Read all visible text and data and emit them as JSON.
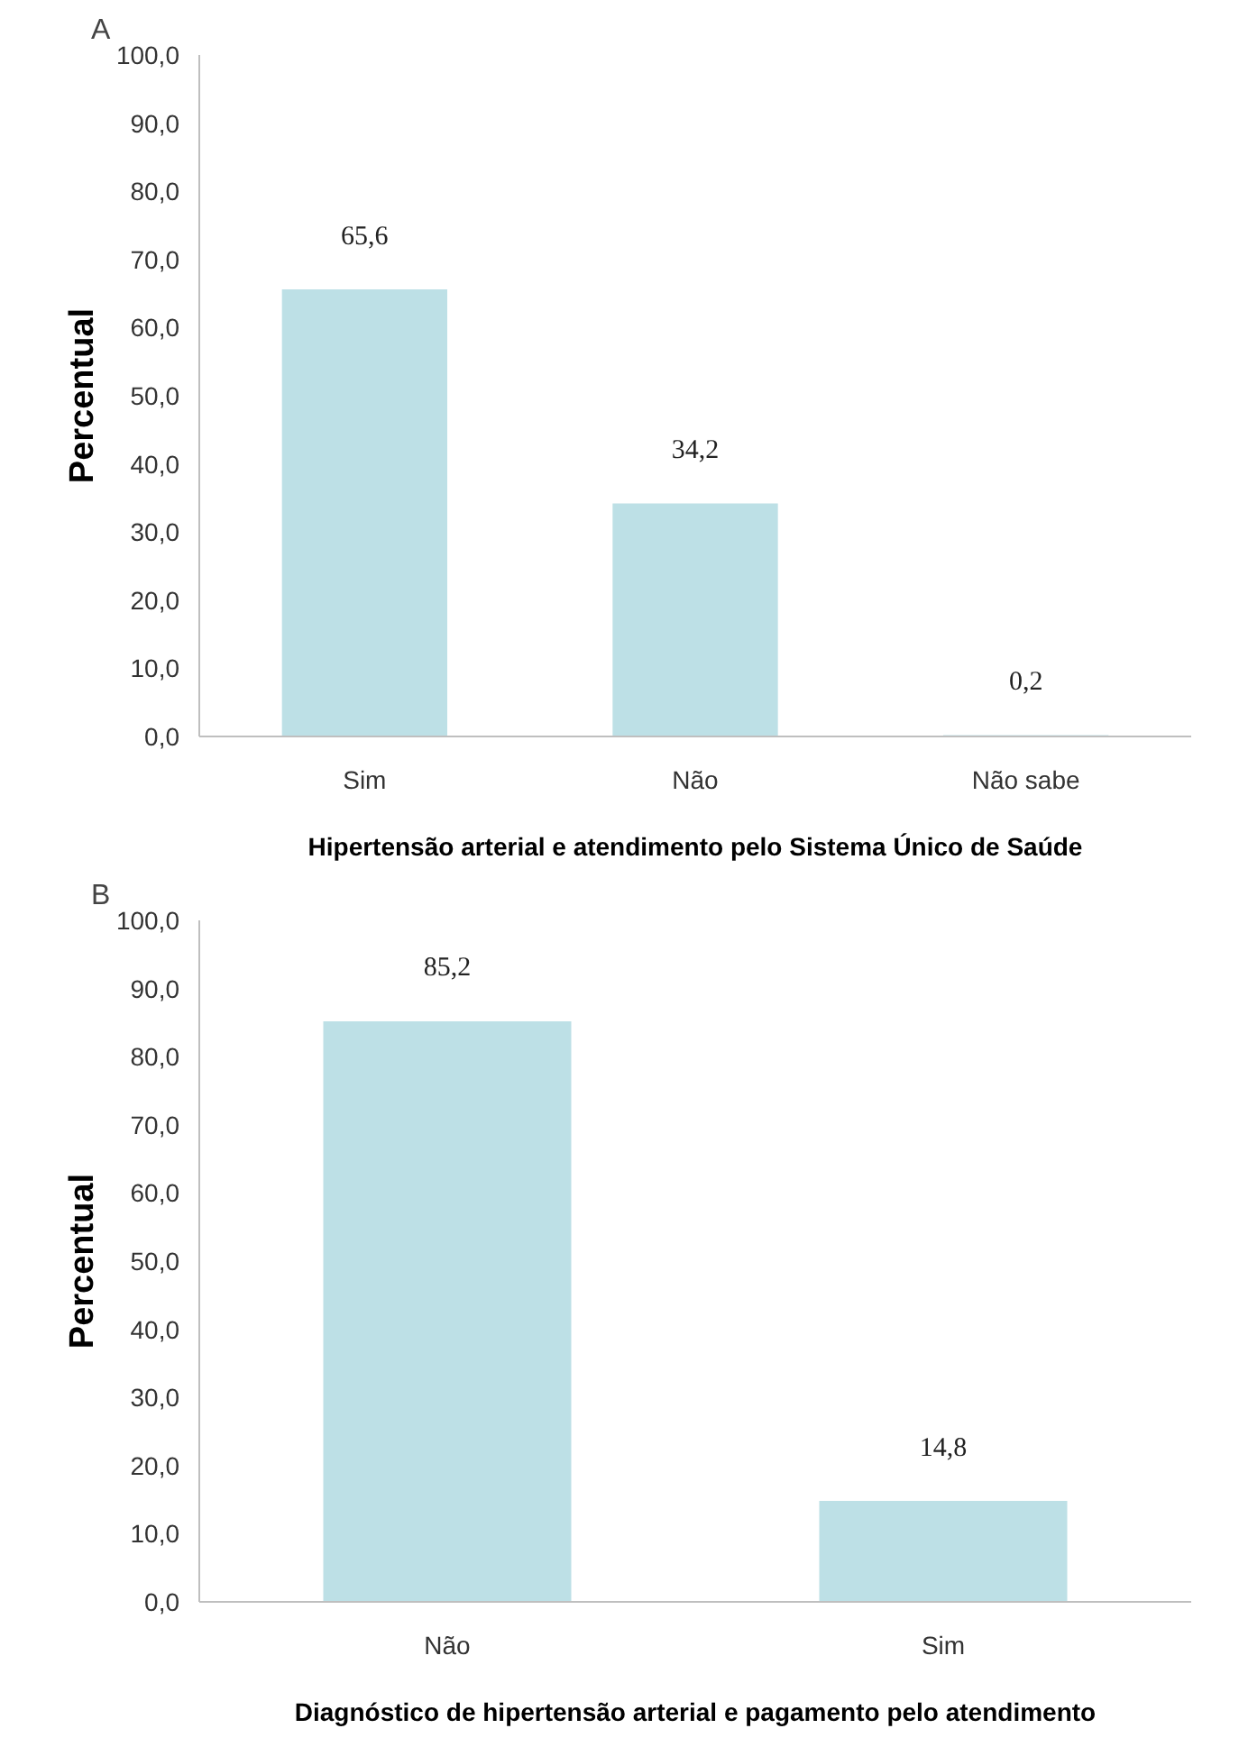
{
  "chart_data": [
    {
      "type": "bar",
      "title": "A",
      "xlabel": "Hipertensão arterial e atendimento pelo Sistema Único de Saúde",
      "ylabel": "Percentual",
      "categories": [
        "Sim",
        "Não",
        "Não sabe"
      ],
      "values": [
        65.6,
        34.2,
        0.2
      ],
      "color": "#bde0e6",
      "value_labels": [
        "65,6",
        "34,2",
        "0,2"
      ],
      "ylim": [
        0,
        100
      ],
      "yticks": [
        {
          "value": 0,
          "label": "0,0"
        },
        {
          "value": 10,
          "label": "10,0"
        },
        {
          "value": 20,
          "label": "20,0"
        },
        {
          "value": 30,
          "label": "30,0"
        },
        {
          "value": 40,
          "label": "40,0"
        },
        {
          "value": 50,
          "label": "50,0"
        },
        {
          "value": 60,
          "label": "60,0"
        },
        {
          "value": 70,
          "label": "70,0"
        },
        {
          "value": 80,
          "label": "80,0"
        },
        {
          "value": 90,
          "label": "90,0"
        },
        {
          "value": 100,
          "label": "100,0"
        }
      ],
      "grid": false,
      "legend": false
    },
    {
      "type": "bar",
      "title": "B",
      "xlabel": "Diagnóstico de hipertensão arterial e pagamento pelo atendimento",
      "ylabel": "Percentual",
      "categories": [
        "Não",
        "Sim"
      ],
      "values": [
        85.2,
        14.8
      ],
      "color": "#bde0e6",
      "value_labels": [
        "85,2",
        "14,8"
      ],
      "ylim": [
        0,
        100
      ],
      "yticks": [
        {
          "value": 0,
          "label": "0,0"
        },
        {
          "value": 10,
          "label": "10,0"
        },
        {
          "value": 20,
          "label": "20,0"
        },
        {
          "value": 30,
          "label": "30,0"
        },
        {
          "value": 40,
          "label": "40,0"
        },
        {
          "value": 50,
          "label": "50,0"
        },
        {
          "value": 60,
          "label": "60,0"
        },
        {
          "value": 70,
          "label": "70,0"
        },
        {
          "value": 80,
          "label": "80,0"
        },
        {
          "value": 90,
          "label": "90,0"
        },
        {
          "value": 100,
          "label": "100,0"
        }
      ],
      "grid": false,
      "legend": false
    }
  ]
}
